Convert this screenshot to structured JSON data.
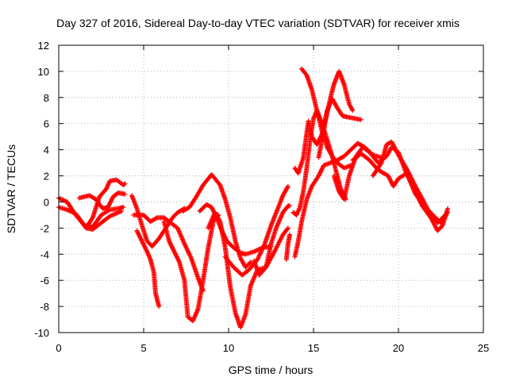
{
  "chart_data": {
    "type": "scatter",
    "title": "Day 327 of 2016, Sidereal Day-to-day VTEC variation (SDTVAR) for receiver xmis",
    "xlabel": "GPS time / hours",
    "ylabel": "SDTVAR / TECUs",
    "xlim": [
      0,
      25
    ],
    "ylim": [
      -10,
      12
    ],
    "xticks": [
      "0",
      "5",
      "10",
      "15",
      "20",
      "25"
    ],
    "yticks": [
      "-10",
      "-8",
      "-6",
      "-4",
      "-2",
      "0",
      "2",
      "4",
      "6",
      "8",
      "10",
      "12"
    ],
    "grid": true,
    "marker": "+",
    "color": "#ff0000",
    "series": [
      {
        "points": [
          [
            0.0,
            0.3
          ],
          [
            0.5,
            0.0
          ],
          [
            1.0,
            -1.0
          ],
          [
            1.5,
            -1.8
          ],
          [
            2.0,
            -1.9
          ],
          [
            2.5,
            -1.0
          ],
          [
            3.0,
            -0.6
          ],
          [
            3.5,
            -0.5
          ],
          [
            3.8,
            -0.4
          ]
        ]
      },
      {
        "points": [
          [
            0.0,
            -0.4
          ],
          [
            0.5,
            -0.6
          ],
          [
            1.0,
            -0.9
          ],
          [
            1.3,
            -1.4
          ],
          [
            1.6,
            -2.0
          ],
          [
            2.0,
            -2.1
          ],
          [
            2.5,
            -1.6
          ],
          [
            3.0,
            -1.1
          ],
          [
            3.5,
            -0.8
          ],
          [
            3.7,
            -0.7
          ]
        ]
      },
      {
        "points": [
          [
            1.2,
            0.3
          ],
          [
            1.8,
            0.5
          ],
          [
            2.2,
            0.2
          ],
          [
            2.4,
            -0.2
          ],
          [
            2.6,
            -0.5
          ],
          [
            2.9,
            -0.4
          ],
          [
            3.2,
            0.4
          ],
          [
            3.5,
            0.7
          ],
          [
            3.9,
            0.6
          ]
        ]
      },
      {
        "points": [
          [
            1.7,
            -1.8
          ],
          [
            2.0,
            -1.2
          ],
          [
            2.4,
            0.4
          ],
          [
            2.8,
            1.0
          ],
          [
            3.0,
            1.6
          ],
          [
            3.4,
            1.7
          ],
          [
            3.8,
            1.3
          ],
          [
            3.9,
            1.4
          ]
        ]
      },
      {
        "points": [
          [
            4.3,
            0.5
          ],
          [
            4.6,
            -0.5
          ],
          [
            4.9,
            -1.8
          ],
          [
            5.2,
            -3.0
          ],
          [
            5.5,
            -3.4
          ],
          [
            5.9,
            -2.8
          ],
          [
            6.3,
            -2.0
          ],
          [
            6.7,
            -1.2
          ],
          [
            7.0,
            -0.8
          ],
          [
            7.4,
            -0.5
          ]
        ]
      },
      {
        "points": [
          [
            4.6,
            -2.2
          ],
          [
            4.9,
            -3.0
          ],
          [
            5.2,
            -3.8
          ],
          [
            5.4,
            -4.4
          ],
          [
            5.6,
            -5.4
          ],
          [
            5.7,
            -7.0
          ],
          [
            5.9,
            -8.0
          ]
        ]
      },
      {
        "points": [
          [
            4.4,
            -1.0
          ],
          [
            5.0,
            -1.0
          ],
          [
            5.4,
            -1.5
          ],
          [
            5.8,
            -1.2
          ],
          [
            6.2,
            -1.2
          ],
          [
            6.6,
            -1.6
          ],
          [
            7.0,
            -2.0
          ],
          [
            7.4,
            -3.2
          ],
          [
            7.8,
            -4.3
          ],
          [
            8.2,
            -5.8
          ],
          [
            8.5,
            -6.8
          ]
        ]
      },
      {
        "points": [
          [
            6.2,
            -1.5
          ],
          [
            6.5,
            -3.0
          ],
          [
            6.8,
            -3.8
          ],
          [
            7.1,
            -4.6
          ],
          [
            7.4,
            -6.0
          ],
          [
            7.6,
            -8.8
          ],
          [
            7.9,
            -9.1
          ],
          [
            8.2,
            -8.2
          ],
          [
            8.5,
            -6.0
          ],
          [
            8.8,
            -3.5
          ],
          [
            9.1,
            -1.5
          ],
          [
            9.4,
            -1.0
          ]
        ]
      },
      {
        "points": [
          [
            7.3,
            -0.7
          ],
          [
            7.7,
            -0.4
          ],
          [
            8.1,
            0.4
          ],
          [
            8.5,
            1.3
          ],
          [
            9.0,
            2.1
          ],
          [
            9.5,
            1.3
          ],
          [
            9.8,
            0.2
          ],
          [
            10.1,
            -1.2
          ],
          [
            10.4,
            -3.0
          ],
          [
            10.7,
            -4.3
          ],
          [
            11.0,
            -5.0
          ],
          [
            11.3,
            -4.6
          ]
        ]
      },
      {
        "points": [
          [
            8.3,
            -0.7
          ],
          [
            8.7,
            -0.2
          ],
          [
            9.0,
            -0.4
          ],
          [
            9.3,
            -1.2
          ],
          [
            9.6,
            -2.2
          ],
          [
            9.9,
            -3.0
          ],
          [
            10.3,
            -3.5
          ],
          [
            10.7,
            -3.9
          ],
          [
            11.0,
            -4.0
          ],
          [
            11.5,
            -3.8
          ],
          [
            12.0,
            -3.5
          ],
          [
            12.5,
            -3.4
          ]
        ]
      },
      {
        "points": [
          [
            8.8,
            -2.0
          ],
          [
            9.2,
            -0.8
          ],
          [
            9.5,
            -1.5
          ],
          [
            9.8,
            -3.5
          ],
          [
            10.1,
            -6.5
          ],
          [
            10.4,
            -8.5
          ],
          [
            10.7,
            -9.6
          ],
          [
            11.0,
            -8.6
          ],
          [
            11.3,
            -6.4
          ],
          [
            11.7,
            -5.2
          ],
          [
            12.2,
            -5.0
          ],
          [
            12.7,
            -3.8
          ],
          [
            13.2,
            -2.5
          ],
          [
            13.5,
            -2.0
          ]
        ]
      },
      {
        "points": [
          [
            9.8,
            -4.2
          ],
          [
            10.3,
            -5.0
          ],
          [
            10.8,
            -5.6
          ],
          [
            11.2,
            -5.2
          ],
          [
            11.7,
            -4.4
          ],
          [
            12.1,
            -3.3
          ],
          [
            12.5,
            -1.8
          ],
          [
            12.9,
            -0.5
          ],
          [
            13.2,
            0.5
          ],
          [
            13.5,
            1.2
          ]
        ]
      },
      {
        "points": [
          [
            11.5,
            -4.5
          ],
          [
            11.8,
            -5.6
          ],
          [
            12.2,
            -5.0
          ],
          [
            12.5,
            -3.2
          ],
          [
            12.8,
            -2.0
          ],
          [
            13.2,
            -0.8
          ],
          [
            13.5,
            -0.3
          ],
          [
            13.6,
            -0.3
          ]
        ]
      },
      {
        "points": [
          [
            13.4,
            -4.4
          ],
          [
            13.5,
            -3.2
          ],
          [
            13.6,
            -2.5
          ]
        ]
      },
      {
        "points": [
          [
            13.8,
            -0.8
          ],
          [
            14.0,
            -1.0
          ],
          [
            14.2,
            -0.4
          ],
          [
            14.4,
            0.8
          ],
          [
            14.6,
            2.6
          ],
          [
            14.8,
            4.8
          ],
          [
            15.0,
            6.4
          ],
          [
            15.2,
            7.0
          ],
          [
            15.5,
            6.0
          ],
          [
            15.8,
            4.8
          ],
          [
            16.1,
            3.5
          ],
          [
            16.3,
            2.5
          ],
          [
            16.6,
            1.0
          ],
          [
            16.9,
            0.2
          ]
        ]
      },
      {
        "points": [
          [
            13.9,
            -4.2
          ],
          [
            14.1,
            -3.0
          ],
          [
            14.3,
            -1.5
          ],
          [
            14.6,
            0.2
          ],
          [
            14.9,
            1.2
          ],
          [
            15.3,
            2.0
          ],
          [
            15.6,
            2.8
          ],
          [
            16.0,
            3.0
          ],
          [
            16.4,
            3.2
          ],
          [
            16.8,
            3.5
          ],
          [
            17.2,
            4.0
          ],
          [
            17.6,
            4.5
          ],
          [
            18.0,
            4.2
          ],
          [
            18.5,
            3.6
          ],
          [
            19.0,
            3.4
          ]
        ]
      },
      {
        "points": [
          [
            13.9,
            2.6
          ],
          [
            14.1,
            2.2
          ],
          [
            14.4,
            3.4
          ],
          [
            14.7,
            6.2
          ],
          [
            14.9,
            5.0
          ],
          [
            15.2,
            4.4
          ],
          [
            15.5,
            5.2
          ],
          [
            15.8,
            7.0
          ],
          [
            16.1,
            7.9
          ],
          [
            16.4,
            7.2
          ],
          [
            16.7,
            6.6
          ],
          [
            17.0,
            6.5
          ],
          [
            17.4,
            6.4
          ],
          [
            17.8,
            6.3
          ]
        ]
      },
      {
        "points": [
          [
            14.3,
            10.2
          ],
          [
            14.6,
            9.7
          ],
          [
            14.9,
            8.6
          ],
          [
            15.2,
            7.0
          ],
          [
            15.5,
            5.4
          ],
          [
            15.8,
            4.2
          ],
          [
            16.1,
            3.5
          ],
          [
            16.4,
            3.0
          ],
          [
            16.8,
            2.6
          ],
          [
            17.2,
            2.8
          ]
        ]
      },
      {
        "points": [
          [
            15.3,
            3.4
          ],
          [
            15.7,
            6.2
          ],
          [
            16.0,
            8.0
          ],
          [
            16.2,
            9.0
          ],
          [
            16.5,
            10.0
          ],
          [
            16.8,
            9.0
          ],
          [
            17.1,
            7.5
          ],
          [
            17.3,
            7.0
          ]
        ]
      },
      {
        "points": [
          [
            16.2,
            2.0
          ],
          [
            16.5,
            0.8
          ],
          [
            16.8,
            0.2
          ],
          [
            17.1,
            2.0
          ],
          [
            17.5,
            3.5
          ],
          [
            17.9,
            4.2
          ],
          [
            18.3,
            3.8
          ],
          [
            18.8,
            3.0
          ],
          [
            19.3,
            3.5
          ],
          [
            19.6,
            4.2
          ],
          [
            20.0,
            3.8
          ],
          [
            20.4,
            2.4
          ],
          [
            20.9,
            1.0
          ],
          [
            21.4,
            -0.3
          ],
          [
            21.9,
            -1.2
          ],
          [
            22.3,
            -2.2
          ],
          [
            22.6,
            -1.8
          ],
          [
            22.9,
            -0.5
          ]
        ]
      },
      {
        "points": [
          [
            18.5,
            2.0
          ],
          [
            19.0,
            3.0
          ],
          [
            19.3,
            4.4
          ],
          [
            19.6,
            4.6
          ],
          [
            20.0,
            3.6
          ],
          [
            20.5,
            2.5
          ],
          [
            21.0,
            1.2
          ],
          [
            21.5,
            0.0
          ],
          [
            21.9,
            -1.0
          ],
          [
            22.3,
            -1.6
          ],
          [
            22.6,
            -1.2
          ],
          [
            22.9,
            -0.8
          ]
        ]
      },
      {
        "points": [
          [
            17.3,
            3.2
          ],
          [
            17.8,
            3.7
          ],
          [
            18.3,
            3.2
          ],
          [
            18.7,
            2.6
          ],
          [
            19.0,
            2.3
          ],
          [
            19.4,
            2.0
          ],
          [
            19.7,
            1.2
          ],
          [
            20.0,
            1.8
          ],
          [
            20.5,
            2.2
          ],
          [
            21.0,
            0.6
          ],
          [
            21.6,
            -0.4
          ],
          [
            22.1,
            -1.1
          ],
          [
            22.5,
            -1.6
          ],
          [
            22.8,
            -1.0
          ]
        ]
      }
    ]
  }
}
